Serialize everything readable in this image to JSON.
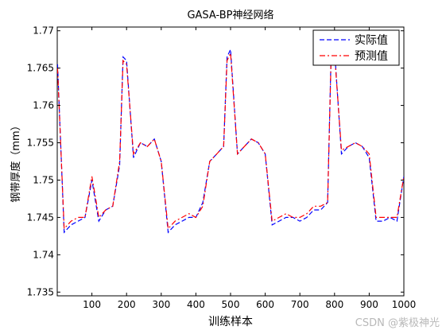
{
  "chart_data": {
    "type": "line",
    "title": "GASA-BP神经网络",
    "xlabel": "训练样本",
    "ylabel": "钢带厚度（mm）",
    "xlim": [
      0,
      1000
    ],
    "ylim": [
      1.7345,
      1.7705
    ],
    "x_ticks": [
      100,
      200,
      300,
      400,
      500,
      600,
      700,
      800,
      900,
      1000
    ],
    "x_tick_labels": [
      "100",
      "200",
      "300",
      "400",
      "500",
      "600",
      "700",
      "800",
      "900",
      "1000"
    ],
    "y_ticks": [
      1.735,
      1.74,
      1.745,
      1.75,
      1.755,
      1.76,
      1.765,
      1.77
    ],
    "y_tick_labels": [
      "1.735",
      "1.74",
      "1.745",
      "1.75",
      "1.755",
      "1.76",
      "1.765",
      "1.77"
    ],
    "grid": false,
    "legend_position": "top-right",
    "series": [
      {
        "name": "实际值",
        "color": "#0000ff",
        "style": "dashed",
        "x": [
          1,
          20,
          40,
          60,
          80,
          100,
          120,
          140,
          160,
          180,
          190,
          200,
          220,
          240,
          260,
          280,
          300,
          320,
          340,
          360,
          380,
          400,
          420,
          440,
          460,
          480,
          490,
          500,
          520,
          540,
          560,
          580,
          600,
          620,
          640,
          660,
          680,
          700,
          720,
          740,
          760,
          780,
          790,
          800,
          820,
          840,
          860,
          880,
          900,
          920,
          940,
          960,
          980,
          1000
        ],
        "values": [
          1.7655,
          1.743,
          1.744,
          1.7445,
          1.745,
          1.75,
          1.7445,
          1.746,
          1.7465,
          1.752,
          1.7665,
          1.766,
          1.753,
          1.755,
          1.7545,
          1.7555,
          1.7525,
          1.743,
          1.744,
          1.7445,
          1.745,
          1.745,
          1.747,
          1.7525,
          1.7535,
          1.7545,
          1.7665,
          1.7675,
          1.7535,
          1.7545,
          1.7555,
          1.755,
          1.7535,
          1.744,
          1.7445,
          1.745,
          1.745,
          1.7445,
          1.745,
          1.746,
          1.746,
          1.747,
          1.7665,
          1.7675,
          1.7535,
          1.7545,
          1.755,
          1.7545,
          1.753,
          1.7445,
          1.7445,
          1.745,
          1.7445,
          1.7505
        ]
      },
      {
        "name": "预测值",
        "color": "#ff0000",
        "style": "dashdot",
        "x": [
          1,
          20,
          40,
          60,
          80,
          100,
          120,
          140,
          160,
          180,
          190,
          200,
          220,
          240,
          260,
          280,
          300,
          320,
          340,
          360,
          380,
          400,
          420,
          440,
          460,
          480,
          490,
          500,
          520,
          540,
          560,
          580,
          600,
          620,
          640,
          660,
          680,
          700,
          720,
          740,
          760,
          780,
          790,
          800,
          820,
          840,
          860,
          880,
          900,
          920,
          940,
          960,
          980,
          1000
        ],
        "values": [
          1.765,
          1.7435,
          1.7445,
          1.745,
          1.745,
          1.7505,
          1.745,
          1.746,
          1.7465,
          1.7525,
          1.766,
          1.7655,
          1.7535,
          1.755,
          1.7545,
          1.7555,
          1.7525,
          1.7435,
          1.7445,
          1.745,
          1.7455,
          1.745,
          1.7465,
          1.7525,
          1.7535,
          1.7545,
          1.766,
          1.767,
          1.7535,
          1.7545,
          1.7555,
          1.755,
          1.7535,
          1.7445,
          1.745,
          1.7455,
          1.745,
          1.745,
          1.7455,
          1.7465,
          1.7465,
          1.747,
          1.766,
          1.767,
          1.754,
          1.7545,
          1.755,
          1.7545,
          1.7535,
          1.745,
          1.745,
          1.745,
          1.745,
          1.7505
        ]
      }
    ]
  },
  "watermark": "CSDN @紫极神光"
}
